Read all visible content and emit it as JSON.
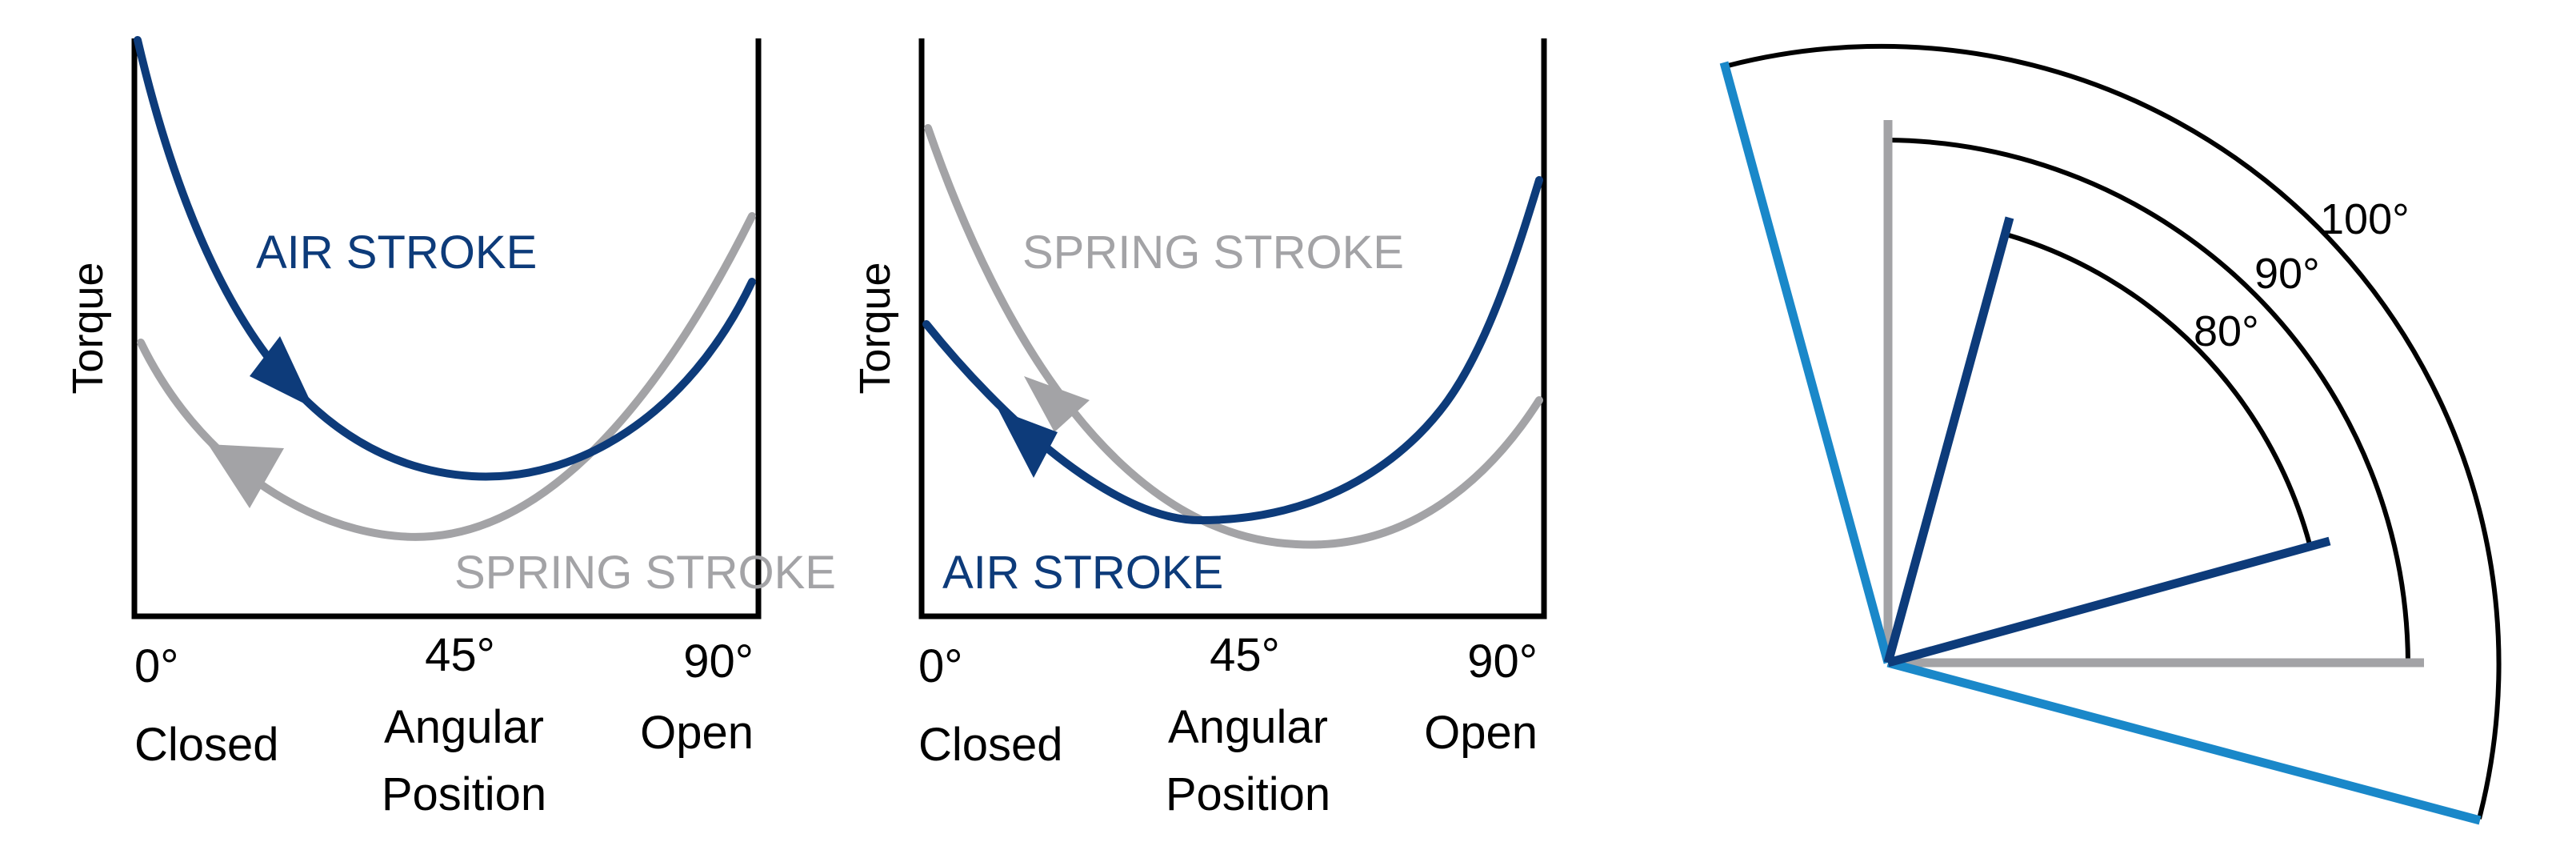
{
  "colors": {
    "air": "#0d3b7a",
    "spring": "#a3a3a6",
    "angle_100": "#1a88c9",
    "angle_90": "#a3a3a6",
    "angle_80": "#0d3b7a",
    "axis": "#000000"
  },
  "panels": [
    {
      "y_label": "Torque",
      "air_label": "AIR STROKE",
      "spring_label": "SPRING STROKE",
      "x_ticks": [
        {
          "value": "0°",
          "caption": "Closed"
        },
        {
          "value": "45°",
          "caption_line1": "Angular",
          "caption_line2": "Position"
        },
        {
          "value": "90°",
          "caption": "Open"
        }
      ]
    },
    {
      "y_label": "Torque",
      "air_label": "AIR STROKE",
      "spring_label": "SPRING STROKE",
      "x_ticks": [
        {
          "value": "0°",
          "caption": "Closed"
        },
        {
          "value": "45°",
          "caption_line1": "Angular",
          "caption_line2": "Position"
        },
        {
          "value": "90°",
          "caption": "Open"
        }
      ]
    }
  ],
  "angle_diagram": {
    "arcs": [
      {
        "label": "100°",
        "icon": "rotation-100-line"
      },
      {
        "label": "90°",
        "icon": "rotation-90-line"
      },
      {
        "label": "80°",
        "icon": "rotation-80-line"
      }
    ]
  }
}
